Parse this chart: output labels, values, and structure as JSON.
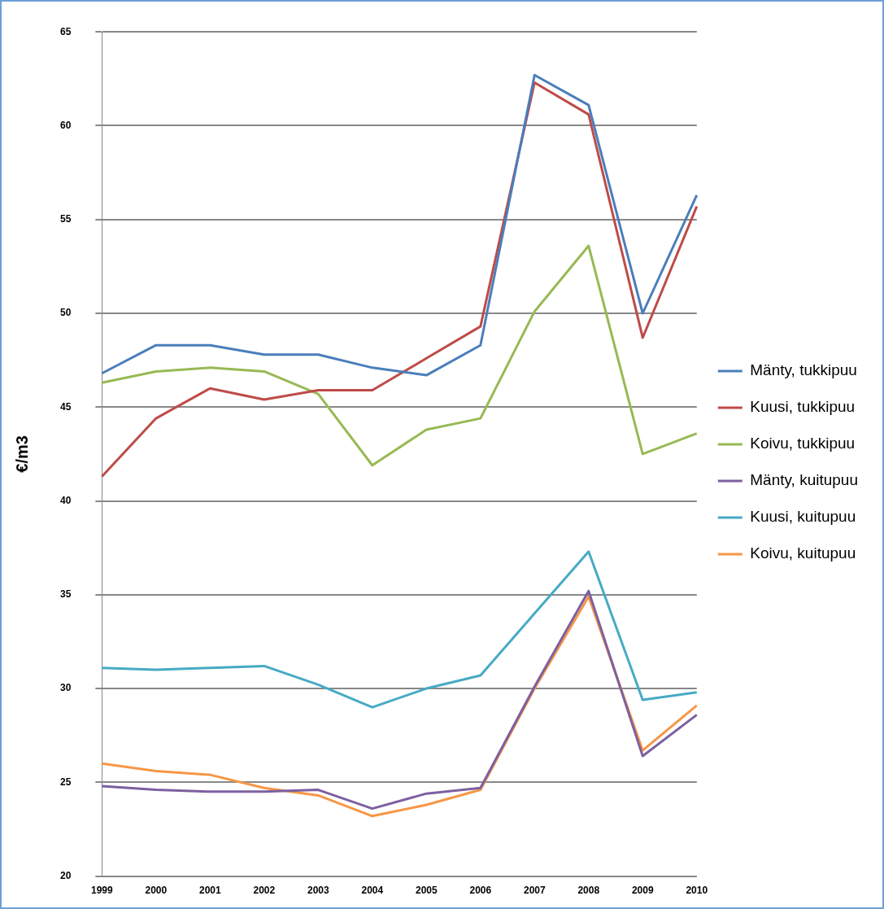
{
  "chart_data": {
    "type": "line",
    "ylabel": "€/m3",
    "categories": [
      "1999",
      "2000",
      "2001",
      "2002",
      "2003",
      "2004",
      "2005",
      "2006",
      "2007",
      "2008",
      "2009",
      "2010"
    ],
    "series": [
      {
        "name": "Mänty, tukkipuu",
        "color": "#4a7ebb",
        "values": [
          46.8,
          48.3,
          48.3,
          47.8,
          47.8,
          47.1,
          46.7,
          48.3,
          62.7,
          61.1,
          50.0,
          56.3
        ]
      },
      {
        "name": "Kuusi, tukkipuu",
        "color": "#be4b48",
        "values": [
          41.3,
          44.4,
          46.0,
          45.4,
          45.9,
          45.9,
          47.6,
          49.3,
          62.3,
          60.6,
          48.7,
          55.7
        ]
      },
      {
        "name": "Koivu, tukkipuu",
        "color": "#98b954",
        "values": [
          46.3,
          46.9,
          47.1,
          46.9,
          45.7,
          41.9,
          43.8,
          44.4,
          50.1,
          53.6,
          42.5,
          43.6
        ]
      },
      {
        "name": "Mänty, kuitupuu",
        "color": "#7d60a0",
        "values": [
          24.8,
          24.6,
          24.5,
          24.5,
          24.6,
          23.6,
          24.4,
          24.7,
          30.1,
          35.2,
          26.4,
          28.6
        ]
      },
      {
        "name": "Kuusi, kuitupuu",
        "color": "#46aac5",
        "values": [
          31.1,
          31.0,
          31.1,
          31.2,
          30.2,
          29.0,
          30.0,
          30.7,
          34.0,
          37.3,
          29.4,
          29.8
        ]
      },
      {
        "name": "Koivu, kuitupuu",
        "color": "#f79646",
        "values": [
          26.0,
          25.6,
          25.4,
          24.7,
          24.3,
          23.2,
          23.8,
          24.6,
          30.0,
          34.9,
          26.7,
          29.1
        ]
      }
    ],
    "ylim": [
      20,
      65
    ],
    "yticks": [
      20,
      25,
      30,
      35,
      40,
      45,
      50,
      55,
      60,
      65
    ],
    "grid": "y",
    "legend": "right",
    "marker": "none",
    "line_style": "solid"
  }
}
